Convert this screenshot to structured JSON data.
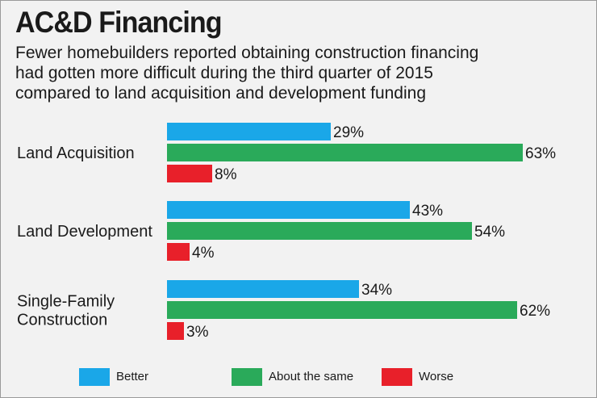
{
  "chart_data": {
    "type": "bar",
    "orientation": "horizontal",
    "title": "AC&D Financing",
    "subtitle": [
      "Fewer homebuilders reported obtaining construction financing",
      "had gotten more difficult during the third quarter of 2015",
      "compared to land acquisition and development funding"
    ],
    "categories": [
      [
        "Land Acquisition"
      ],
      [
        "Land Development"
      ],
      [
        "Single-Family",
        "Construction"
      ]
    ],
    "series": [
      {
        "name": "Better",
        "color": "#1aa7e8",
        "values": [
          29,
          43,
          34
        ]
      },
      {
        "name": "About the same",
        "color": "#2aaa5a",
        "values": [
          63,
          54,
          62
        ]
      },
      {
        "name": "Worse",
        "color": "#e8202a",
        "values": [
          8,
          4,
          3
        ]
      }
    ],
    "value_suffix": "%",
    "xlim": [
      0,
      100
    ],
    "grid": false,
    "legend_position": "bottom"
  }
}
